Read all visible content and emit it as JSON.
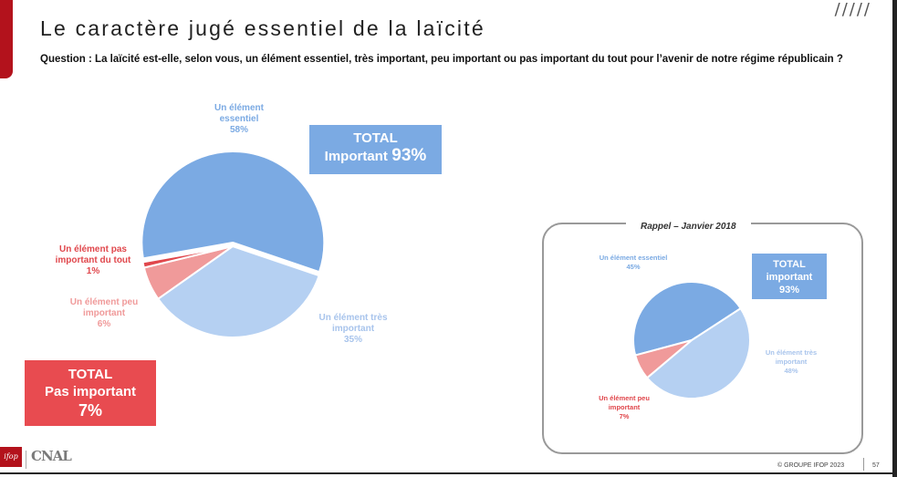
{
  "header": {
    "title": "Le caractère jugé essentiel de la laïcité",
    "decoration": "/////",
    "question": "Question : La laïcité est-elle, selon vous, un élément essentiel, très important, peu important ou pas important du tout pour l’avenir de notre régime républicain ?"
  },
  "colors": {
    "essentiel": "#7BAAE3",
    "tres_important": "#B5D0F2",
    "peu_important": "#F09A9A",
    "pas_important": "#E0474C",
    "total_important_box": "#7BAAE3",
    "total_pas_important_box": "#E84B50",
    "accent": "#B3121C"
  },
  "chart_data": [
    {
      "type": "pie",
      "name": "main",
      "slices": [
        {
          "label": "Un élément essentiel",
          "value": 58,
          "value_label": "58%"
        },
        {
          "label": "Un élément très important",
          "value": 35,
          "value_label": "35%"
        },
        {
          "label": "Un élément peu important",
          "value": 6,
          "value_label": "6%"
        },
        {
          "label": "Un élément pas important du tout",
          "value": 1,
          "value_label": "1%"
        }
      ],
      "totals": [
        {
          "label": "TOTAL Important",
          "value": "93%"
        },
        {
          "label": "TOTAL Pas important",
          "value": "7%"
        }
      ]
    },
    {
      "type": "pie",
      "name": "rappel",
      "title": "Rappel – Janvier 2018",
      "slices": [
        {
          "label": "Un élément essentiel",
          "value": 45,
          "value_label": "45%"
        },
        {
          "label": "Un élément très important",
          "value": 48,
          "value_label": "48%"
        },
        {
          "label": "Un élément peu important",
          "value": 7,
          "value_label": "7%"
        }
      ],
      "totals": [
        {
          "label": "TOTAL important",
          "value": "93%"
        }
      ]
    }
  ],
  "main_labels": {
    "essentiel": {
      "text": "Un élément essentiel",
      "value": "58%"
    },
    "tres_important": {
      "text": "Un élément très important",
      "value": "35%"
    },
    "peu_important": {
      "text": "Un élément peu important",
      "value": "6%"
    },
    "pas_important": {
      "text": "Un élément pas important du tout",
      "value": "1%"
    }
  },
  "main_totals": {
    "important_line1": "TOTAL",
    "important_line2": "Important",
    "important_value": "93%",
    "pas_important_line1": "TOTAL",
    "pas_important_line2": "Pas important",
    "pas_important_value": "7%"
  },
  "rappel": {
    "title": "Rappel – Janvier 2018",
    "essentiel": {
      "text": "Un élément essentiel",
      "value": "45%"
    },
    "tres_important": {
      "text": "Un élément très important",
      "value": "48%"
    },
    "peu_important": {
      "text": "Un élément peu important",
      "value": "7%"
    },
    "total_line1": "TOTAL",
    "total_line2": "important",
    "total_value": "93%"
  },
  "footer": {
    "copyright": "© GROUPE IFOP 2023",
    "page": "57",
    "logo_ifop": "ifop",
    "logo_cnal": "CNAL"
  }
}
